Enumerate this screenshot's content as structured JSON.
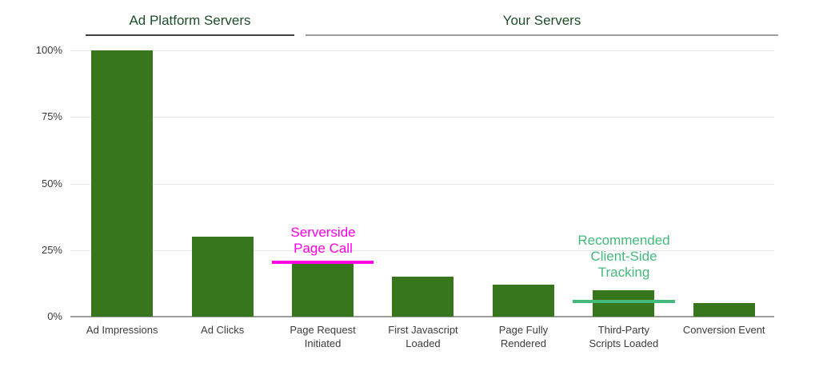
{
  "chart_data": {
    "type": "bar",
    "title": "",
    "categories": [
      "Ad Impressions",
      "Ad Clicks",
      "Page Request Initiated",
      "First Javascript Loaded",
      "Page Fully Rendered",
      "Third-Party Scripts Loaded",
      "Conversion Event"
    ],
    "category_label_lines": [
      [
        "Ad Impressions"
      ],
      [
        "Ad Clicks"
      ],
      [
        "Page Request",
        "Initiated"
      ],
      [
        "First Javascript",
        "Loaded"
      ],
      [
        "Page Fully",
        "Rendered"
      ],
      [
        "Third-Party",
        "Scripts Loaded"
      ],
      [
        "Conversion Event"
      ]
    ],
    "values": [
      100,
      30,
      20,
      15,
      12,
      10,
      5
    ],
    "value_unit": "%",
    "ylim": [
      0,
      100
    ],
    "y_ticks": [
      {
        "value": 0,
        "label": "0%"
      },
      {
        "value": 25,
        "label": "25%"
      },
      {
        "value": 50,
        "label": "50%"
      },
      {
        "value": 75,
        "label": "75%"
      },
      {
        "value": 100,
        "label": "100%"
      }
    ],
    "grid": true,
    "legend": "none",
    "colors": {
      "bar": "#38761d",
      "header_text": "#1e4d2b",
      "header_line_ad_platform": "#404040",
      "header_line_your_servers": "#9e9e9e",
      "gridline": "#e6e6e6",
      "baseline": "#9e9e9e",
      "axis_label": "#3c3c3c",
      "annotation_serverside": "#ff00e6",
      "annotation_client_side": "#45b97c"
    },
    "group_headers": [
      {
        "label": "Ad Platform Servers",
        "start_category": "Ad Impressions",
        "end_category": "Ad Clicks"
      },
      {
        "label": "Your Servers",
        "start_category": "Page Request Initiated",
        "end_category": "Conversion Event"
      }
    ],
    "annotations": [
      {
        "text": "Serverside Page Call",
        "lines": [
          "Serverside",
          "Page Call"
        ],
        "color": "#ff00e6",
        "bar_index": 2,
        "line_value": 20.5
      },
      {
        "text": "Recommended Client-Side Tracking",
        "lines": [
          "Recommended",
          "Client-Side",
          "Tracking"
        ],
        "color": "#45b97c",
        "bar_index": 5,
        "line_value": 5.8
      }
    ]
  }
}
